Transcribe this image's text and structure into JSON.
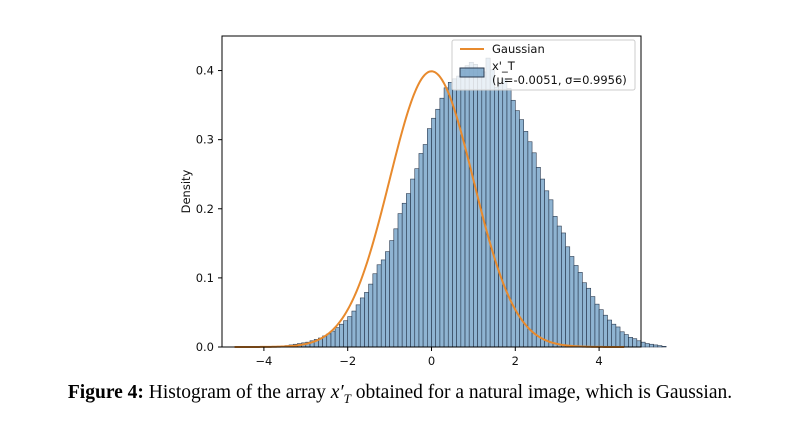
{
  "chart_data": {
    "type": "bar",
    "subtype": "histogram-with-density-curve",
    "ylabel": "Density",
    "xlabel": "",
    "xlim": [
      -5,
      5
    ],
    "ylim": [
      0,
      0.45
    ],
    "xticks": [
      -4,
      -2,
      0,
      2,
      4
    ],
    "yticks": [
      0.0,
      0.1,
      0.2,
      0.3,
      0.4
    ],
    "xtick_labels": [
      "−4",
      "−2",
      "0",
      "2",
      "4"
    ],
    "ytick_labels": [
      "0.0",
      "0.1",
      "0.2",
      "0.3",
      "0.4"
    ],
    "grid": false,
    "legend_position": "top-right",
    "series": [
      {
        "name": "Gaussian",
        "kind": "line",
        "color": "#e88a2d",
        "function": "normal_pdf",
        "mu": 0,
        "sigma": 1,
        "x_range": [
          -4.7,
          4.6
        ]
      },
      {
        "name": "x'_T\n(μ=-0.0051, σ=0.9956)",
        "label_lines": [
          "x'_T",
          "(μ=-0.0051, σ=0.9956)"
        ],
        "kind": "histogram",
        "color": "#6a9bc3",
        "edge_color": "#2b3a4f",
        "bin_start": -3.5,
        "bin_width": 0.1,
        "values": [
          0.002,
          0.003,
          0.004,
          0.005,
          0.006,
          0.007,
          0.009,
          0.011,
          0.013,
          0.016,
          0.019,
          0.023,
          0.028,
          0.033,
          0.038,
          0.044,
          0.052,
          0.061,
          0.071,
          0.079,
          0.091,
          0.106,
          0.119,
          0.126,
          0.138,
          0.154,
          0.171,
          0.193,
          0.208,
          0.222,
          0.243,
          0.258,
          0.28,
          0.293,
          0.316,
          0.331,
          0.344,
          0.36,
          0.375,
          0.383,
          0.388,
          0.392,
          0.4,
          0.407,
          0.412,
          0.409,
          0.402,
          0.398,
          0.418,
          0.401,
          0.376,
          0.381,
          0.388,
          0.374,
          0.357,
          0.342,
          0.329,
          0.312,
          0.297,
          0.281,
          0.26,
          0.243,
          0.226,
          0.213,
          0.189,
          0.175,
          0.165,
          0.145,
          0.131,
          0.118,
          0.108,
          0.093,
          0.085,
          0.073,
          0.062,
          0.054,
          0.046,
          0.039,
          0.033,
          0.029,
          0.022,
          0.018,
          0.014,
          0.012,
          0.009,
          0.007,
          0.005,
          0.004,
          0.003,
          0.002,
          0.001
        ]
      }
    ]
  },
  "caption": {
    "lead": "Figure 4:",
    "text_before": " Histogram of the array ",
    "math_var": "x",
    "math_prime": "′",
    "math_sub": "T",
    "text_after": " obtained for a natural image, which is Gaussian."
  }
}
